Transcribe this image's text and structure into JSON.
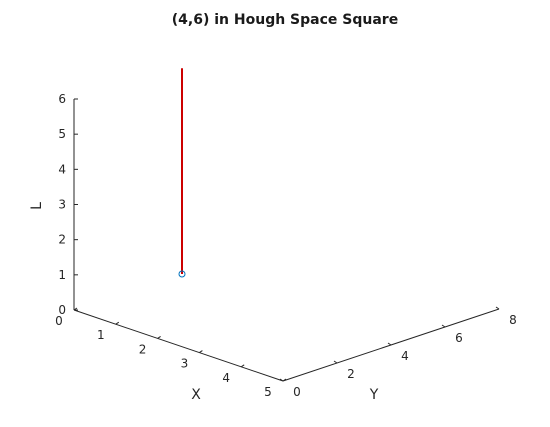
{
  "chart_data": {
    "type": "line",
    "projection": "3d",
    "title": "(4,6) in Hough Space Square",
    "axes": {
      "x": {
        "label": "X",
        "range": [
          0,
          5
        ],
        "ticks": [
          "0",
          "1",
          "2",
          "3",
          "4",
          "5"
        ]
      },
      "y": {
        "label": "Y",
        "range": [
          0,
          8
        ],
        "ticks": [
          "0",
          "2",
          "4",
          "6",
          "8"
        ]
      },
      "z": {
        "label": "L",
        "range": [
          0,
          6
        ],
        "ticks": [
          "0",
          "1",
          "2",
          "3",
          "4",
          "5",
          "6"
        ]
      }
    },
    "grid": false,
    "series": [
      {
        "kind": "line",
        "color": "#cc0000",
        "points": [
          {
            "x": 0,
            "y": 4,
            "z": 0
          },
          {
            "x": 0,
            "y": 4,
            "z": 5.85
          }
        ]
      },
      {
        "kind": "marker",
        "marker": "circle",
        "color": "#0072bd",
        "points": [
          {
            "x": 0,
            "y": 4,
            "z": 0
          }
        ]
      }
    ]
  }
}
